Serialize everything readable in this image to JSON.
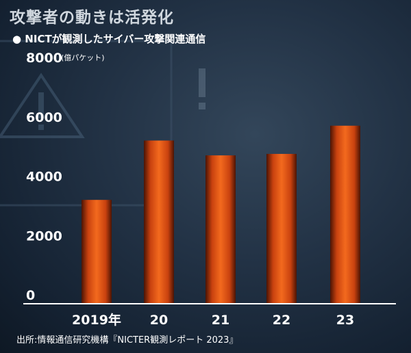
{
  "title": "攻撃者の動きは活発化",
  "subtitle": "● NICTが観測したサイバー攻撃関連通信",
  "source": "出所:情報通信研究機構『NICTER観測レポート 2023』",
  "colors": {
    "bar_top": "#f36a1e",
    "bar_mid": "#c9420f",
    "bar_edge": "#4c1404",
    "axis": "#ffffff"
  },
  "chart_data": {
    "type": "bar",
    "categories": [
      "2019年",
      "20",
      "21",
      "22",
      "23"
    ],
    "values": [
      3500,
      5500,
      5000,
      5050,
      6000
    ],
    "y_ticks": [
      0,
      2000,
      4000,
      6000,
      8000
    ],
    "y_unit": "(億パケット)",
    "ylim": [
      0,
      8000
    ],
    "grid": false
  }
}
